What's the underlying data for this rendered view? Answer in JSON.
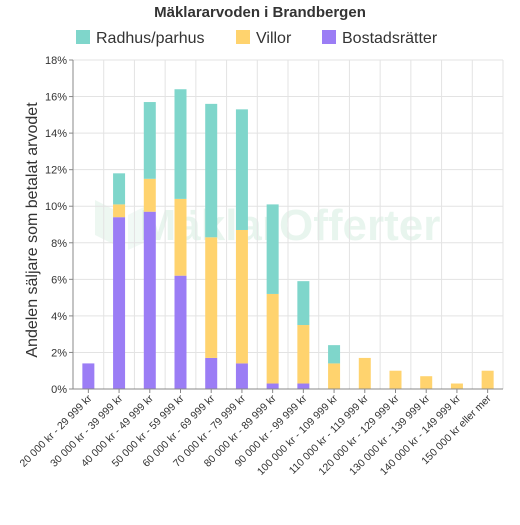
{
  "chart_data": {
    "type": "bar",
    "stacked": true,
    "title": "Mäklararvoden i Brandbergen",
    "xlabel": "",
    "ylabel": "Andelen säljare som betalat arvodet",
    "ylim": [
      0,
      18
    ],
    "y_ticks": [
      "0%",
      "2%",
      "4%",
      "6%",
      "8%",
      "10%",
      "12%",
      "14%",
      "16%",
      "18%"
    ],
    "grid": true,
    "legend_position": "top",
    "watermark": "MäklarOfferter",
    "categories": [
      "20 000 kr - 29 999 kr",
      "30 000 kr - 39 999 kr",
      "40 000 kr - 49 999 kr",
      "50 000 kr - 59 999 kr",
      "60 000 kr - 69 999 kr",
      "70 000 kr - 79 999 kr",
      "80 000 kr - 89 999 kr",
      "90 000 kr - 99 999 kr",
      "100 000 kr - 109 999 kr",
      "110 000 kr - 119 999 kr",
      "120 000 kr - 129 999 kr",
      "130 000 kr - 139 999 kr",
      "140 000 kr - 149 999 kr",
      "150 000 kr eller mer"
    ],
    "series": [
      {
        "name": "Bostadsrätter",
        "color": "#9b7df5",
        "values": [
          1.4,
          9.4,
          9.7,
          6.2,
          1.7,
          1.4,
          0.3,
          0.3,
          0.0,
          0.0,
          0.0,
          0.0,
          0.0,
          0.0
        ]
      },
      {
        "name": "Villor",
        "color": "#ffd36e",
        "values": [
          0.0,
          0.7,
          1.8,
          4.2,
          6.6,
          7.3,
          4.9,
          3.2,
          1.4,
          1.7,
          1.0,
          0.7,
          0.3,
          1.0
        ]
      },
      {
        "name": "Radhus/parhus",
        "color": "#7fd6cb",
        "values": [
          0.0,
          1.7,
          4.2,
          6.0,
          7.3,
          6.6,
          4.9,
          2.4,
          1.0,
          0.0,
          0.0,
          0.0,
          0.0,
          0.0
        ]
      }
    ],
    "legend_order": [
      "Radhus/parhus",
      "Villor",
      "Bostadsrätter"
    ]
  }
}
